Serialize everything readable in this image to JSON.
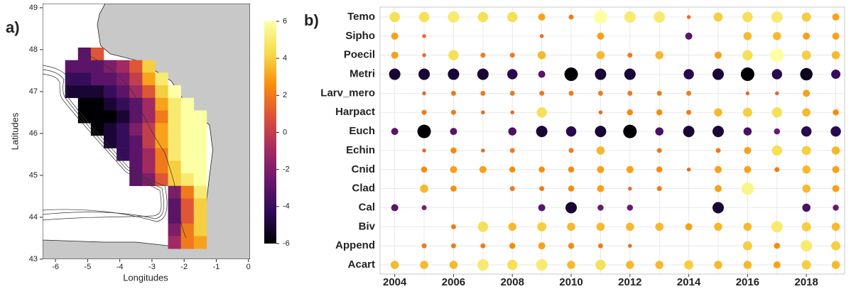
{
  "chart_data": [
    {
      "type": "heatmap",
      "panel_label": "a)",
      "xlabel": "Longitudes",
      "ylabel": "Latitudes",
      "xlim": [
        -6.4,
        0.05
      ],
      "ylim": [
        43,
        49.1
      ],
      "xticks": [
        -6,
        -5,
        -4,
        -3,
        -2,
        -1,
        0
      ],
      "yticks": [
        43,
        44,
        45,
        46,
        47,
        48,
        49
      ],
      "x": [
        -5.5,
        -5.1,
        -4.7,
        -4.3,
        -3.9,
        -3.5,
        -3.1,
        -2.7,
        -2.3,
        -1.9,
        -1.5,
        -1.1
      ],
      "y": [
        47.9,
        47.6,
        47.3,
        47.0,
        46.7,
        46.4,
        46.1,
        45.8,
        45.5,
        45.2,
        44.9,
        44.6,
        44.3,
        44.0,
        43.7,
        43.4
      ],
      "z": [
        [
          null,
          -3,
          1,
          null,
          null,
          null,
          null,
          null,
          null,
          null,
          null,
          null
        ],
        [
          -3,
          -3,
          -3,
          -2,
          -1,
          1,
          4,
          null,
          null,
          null,
          null,
          null
        ],
        [
          -4,
          -4,
          -3,
          -3,
          -2,
          0,
          3,
          5,
          null,
          null,
          null,
          null
        ],
        [
          -5,
          -5,
          -5,
          -4,
          -3,
          -1,
          1,
          4,
          6,
          null,
          null,
          null
        ],
        [
          null,
          -6,
          -6,
          -5,
          -4,
          -3,
          -1,
          3,
          5,
          6,
          null,
          null
        ],
        [
          null,
          -6,
          -6,
          -6,
          -5,
          -3,
          -1,
          2,
          5,
          6,
          6,
          null
        ],
        [
          null,
          null,
          -6,
          -5,
          -4,
          -2,
          0,
          3,
          5,
          6,
          6,
          null
        ],
        [
          null,
          null,
          null,
          -5,
          -4,
          -3,
          0,
          3,
          5,
          6,
          6,
          null
        ],
        [
          null,
          null,
          null,
          null,
          -4,
          -3,
          -1,
          2,
          5,
          6,
          6,
          null
        ],
        [
          null,
          null,
          null,
          null,
          null,
          -3,
          -1,
          2,
          4,
          6,
          6,
          null
        ],
        [
          null,
          null,
          null,
          null,
          null,
          -3,
          -2,
          1,
          4,
          5,
          6,
          null
        ],
        [
          null,
          null,
          null,
          null,
          null,
          null,
          null,
          null,
          -2,
          2,
          5,
          null
        ],
        [
          null,
          null,
          null,
          null,
          null,
          null,
          null,
          null,
          -3,
          1,
          4,
          null
        ],
        [
          null,
          null,
          null,
          null,
          null,
          null,
          null,
          null,
          -3,
          1,
          4,
          null
        ],
        [
          null,
          null,
          null,
          null,
          null,
          null,
          null,
          null,
          -2,
          2,
          4,
          null
        ],
        [
          null,
          null,
          null,
          null,
          null,
          null,
          null,
          null,
          -1,
          2,
          3,
          null
        ]
      ],
      "clim": [
        -6,
        6
      ],
      "cticks": [
        -6,
        -4,
        -2,
        0,
        2,
        4,
        6
      ],
      "colorscale": [
        "#000004",
        "#2c0b57",
        "#6a176e",
        "#a52c60",
        "#dd513a",
        "#f98e09",
        "#f5db4c",
        "#fcffa4"
      ]
    },
    {
      "type": "bubble",
      "panel_label": "b)",
      "categories": [
        "Temo",
        "Sipho",
        "Poecil",
        "Metri",
        "Larv_mero",
        "Harpact",
        "Euch",
        "Echin",
        "Cnid",
        "Clad",
        "Cal",
        "Biv",
        "Append",
        "Acart"
      ],
      "x": [
        2004,
        2005,
        2006,
        2007,
        2008,
        2009,
        2010,
        2011,
        2012,
        2013,
        2014,
        2015,
        2016,
        2017,
        2018,
        2019
      ],
      "xlim": [
        2003.5,
        2019.3
      ],
      "xticks": [
        2004,
        2006,
        2008,
        2010,
        2012,
        2014,
        2016,
        2018
      ],
      "grid": true,
      "values": [
        [
          4.5,
          4.5,
          5,
          4.5,
          4.5,
          3,
          2,
          6,
          5,
          5,
          1.5,
          4,
          4.5,
          5,
          4,
          3
        ],
        [
          3,
          1.5,
          null,
          null,
          null,
          1.5,
          null,
          3,
          null,
          null,
          -3,
          null,
          3.5,
          3.5,
          3,
          3
        ],
        [
          3,
          1.5,
          4.5,
          2,
          2,
          3.5,
          null,
          3.5,
          2,
          3.5,
          null,
          3,
          4.5,
          6,
          4,
          3.5
        ],
        [
          -5,
          -5,
          -5,
          -5,
          -4.5,
          -3,
          -6,
          -5,
          -5,
          null,
          -4.5,
          -5,
          -6,
          -4.5,
          -5.5,
          -4
        ],
        [
          null,
          1.5,
          2,
          2,
          2,
          2,
          2,
          2,
          2,
          2,
          2,
          null,
          1.5,
          1.5,
          3,
          null
        ],
        [
          null,
          2,
          2,
          1.5,
          1.5,
          4.5,
          null,
          1.5,
          2.5,
          2.5,
          2,
          3.5,
          4,
          4.5,
          3.5,
          2.5
        ],
        [
          -3,
          -6,
          -3,
          null,
          -3.5,
          -5,
          -4.5,
          -5,
          -6,
          -3.5,
          -5,
          -5,
          -3.5,
          -2.5,
          -4.5,
          -4.5
        ],
        [
          null,
          1.5,
          2.5,
          1.5,
          2,
          null,
          2,
          3.5,
          null,
          2,
          null,
          2,
          3,
          4.5,
          4,
          3.5
        ],
        [
          null,
          2.5,
          3,
          3,
          2.5,
          2.5,
          2.5,
          3,
          3,
          2.5,
          1.5,
          3,
          3,
          2,
          3.5,
          3
        ],
        [
          null,
          3.5,
          2.5,
          null,
          2,
          2,
          2.5,
          3,
          1.5,
          2,
          null,
          3,
          5.5,
          null,
          3.5,
          3
        ],
        [
          -3,
          -2,
          null,
          null,
          null,
          -3,
          -5,
          -2.5,
          -2.5,
          null,
          null,
          -5,
          null,
          null,
          -3.5,
          -2.5
        ],
        [
          null,
          null,
          2,
          4.5,
          3.5,
          4,
          3.5,
          3.5,
          3.5,
          3.5,
          3,
          3.5,
          3.5,
          5,
          4,
          3.5
        ],
        [
          null,
          2,
          2,
          2,
          2.5,
          3,
          2.5,
          2,
          1.5,
          null,
          null,
          null,
          4,
          2.5,
          5,
          4
        ],
        [
          3.5,
          3.5,
          3.5,
          5,
          4.5,
          5,
          3.5,
          4.5,
          3.5,
          3.5,
          4,
          3.5,
          3.5,
          3,
          4,
          3.5
        ]
      ]
    }
  ]
}
